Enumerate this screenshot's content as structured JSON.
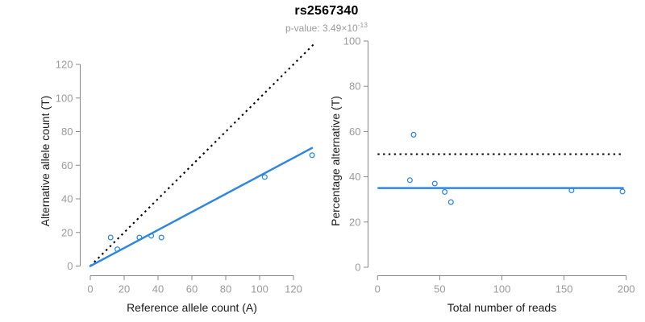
{
  "header": {
    "title": "rs2567340",
    "subtitle_prefix": "p-value: 3.49×10",
    "subtitle_exponent": "-13"
  },
  "colors": {
    "accent_blue": "#2E86E0",
    "identity_black": "#000000",
    "axis_line_gray": "#888888",
    "tick_label_gray": "#9a9a9a",
    "label_black": "#1a1a1a",
    "subtitle_gray": "#9a9a9a",
    "background": "#ffffff"
  },
  "chart_data": [
    {
      "type": "scatter",
      "panel": "left",
      "xlabel": "Reference allele count (A)",
      "ylabel": "Alternative allele count (T)",
      "xlim": [
        0,
        131
      ],
      "ylim": [
        0,
        131
      ],
      "xticks": [
        0,
        20,
        40,
        60,
        80,
        100,
        120
      ],
      "yticks": [
        0,
        20,
        40,
        60,
        80,
        100,
        120
      ],
      "grid": false,
      "legend": "none",
      "marker": "open-circle",
      "points": [
        [
          12,
          17
        ],
        [
          16,
          10
        ],
        [
          29,
          17
        ],
        [
          36,
          18
        ],
        [
          42,
          17
        ],
        [
          103,
          53
        ],
        [
          131,
          66
        ]
      ],
      "lines": [
        {
          "name": "identity-line",
          "style": "dotted",
          "color": "#000000",
          "x": [
            0,
            131.8
          ],
          "y": [
            0,
            131.8
          ]
        },
        {
          "name": "fit-line",
          "style": "solid",
          "color": "#2E86E0",
          "x": [
            -0.5,
            131.4
          ],
          "y": [
            -0.27,
            70.5
          ]
        }
      ]
    },
    {
      "type": "scatter",
      "panel": "right",
      "xlabel": "Total number of reads",
      "ylabel": "Percentage alternative (T)",
      "xlim": [
        0,
        200
      ],
      "ylim": [
        0,
        100
      ],
      "xticks": [
        0,
        50,
        100,
        150,
        200
      ],
      "yticks": [
        0,
        20,
        40,
        60,
        80,
        100
      ],
      "grid": false,
      "legend": "none",
      "marker": "open-circle",
      "points": [
        [
          29,
          58.6
        ],
        [
          26,
          38.5
        ],
        [
          46,
          37.0
        ],
        [
          54,
          33.3
        ],
        [
          59,
          28.8
        ],
        [
          156,
          34.0
        ],
        [
          197,
          33.5
        ]
      ],
      "lines": [
        {
          "name": "expected-50-percent-line",
          "style": "dotted",
          "color": "#000000",
          "x": [
            0,
            198
          ],
          "y": [
            50,
            50
          ]
        },
        {
          "name": "mean-percent-line",
          "style": "solid",
          "color": "#2E86E0",
          "x": [
            0,
            198
          ],
          "y": [
            35,
            35
          ]
        }
      ]
    }
  ]
}
